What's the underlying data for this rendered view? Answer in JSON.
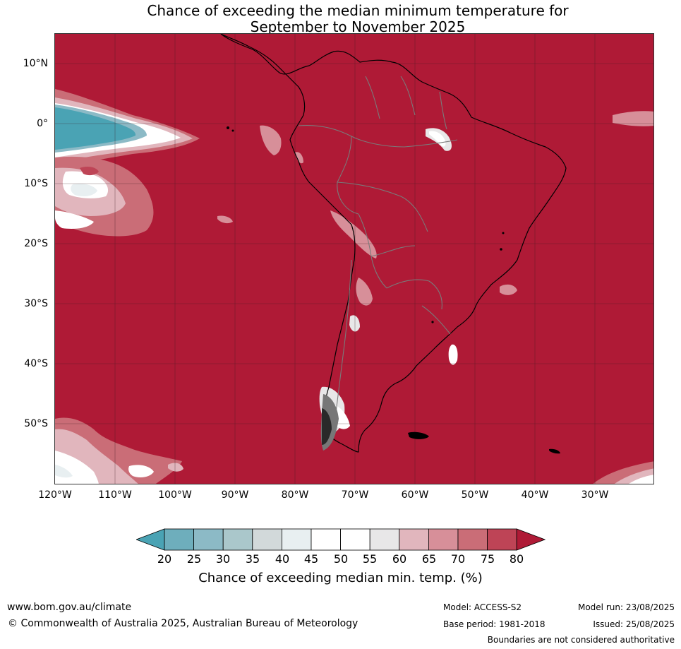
{
  "title": {
    "line1": "Chance of exceeding the median minimum temperature for",
    "line2": "September to November 2025"
  },
  "map": {
    "background_color": "#af1a36",
    "latitude_labels": [
      "10°N",
      "0°",
      "10°S",
      "20°S",
      "30°S",
      "40°S",
      "50°S"
    ],
    "longitude_labels": [
      "120°W",
      "110°W",
      "100°W",
      "90°W",
      "80°W",
      "70°W",
      "60°W",
      "50°W",
      "40°W",
      "30°W"
    ]
  },
  "colorbar": {
    "ticks": [
      "20",
      "25",
      "30",
      "35",
      "40",
      "45",
      "50",
      "55",
      "60",
      "65",
      "70",
      "75",
      "80"
    ],
    "colors": [
      "#4aa3b4",
      "#6eaebc",
      "#8cbac6",
      "#aac7cb",
      "#d2d9da",
      "#e8eff1",
      "#ffffff",
      "#ffffff",
      "#e8e7e8",
      "#e1b6bd",
      "#d78f99",
      "#ca6d77",
      "#be4456",
      "#af1a36"
    ],
    "label": "Chance of exceeding median min. temp. (%)"
  },
  "footer": {
    "website": "www.bom.gov.au/climate",
    "copyright": "© Commonwealth of Australia 2025, Australian Bureau of Meteorology",
    "model": "Model: ACCESS-S2",
    "base_period": "Base period: 1981-2018",
    "model_run": "Model run: 23/08/2025",
    "issued": "Issued: 25/08/2025",
    "disclaimer": "Boundaries are not considered authoritative"
  }
}
